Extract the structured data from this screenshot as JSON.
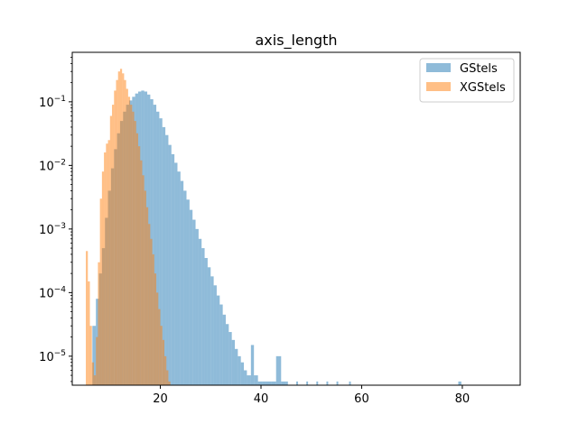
{
  "chart_data": {
    "type": "bar",
    "title": "axis_length",
    "xlabel": "",
    "ylabel": "",
    "yscale": "log",
    "xlim": [
      2.5,
      91.5
    ],
    "ylim": [
      3.5e-06,
      0.6
    ],
    "grid": false,
    "legend_position": "top-right",
    "x_ticks": [
      {
        "value": 20,
        "label": "20"
      },
      {
        "value": 40,
        "label": "40"
      },
      {
        "value": 60,
        "label": "60"
      },
      {
        "value": 80,
        "label": "80"
      }
    ],
    "y_ticks": [
      {
        "value": 1e-05,
        "base": "10",
        "exp": "−5"
      },
      {
        "value": 0.0001,
        "base": "10",
        "exp": "−4"
      },
      {
        "value": 0.001,
        "base": "10",
        "exp": "−3"
      },
      {
        "value": 0.01,
        "base": "10",
        "exp": "−2"
      },
      {
        "value": 0.1,
        "base": "10",
        "exp": "−1"
      }
    ],
    "series": [
      {
        "name": "GStels",
        "color": "#1f77b4",
        "alpha": 0.5,
        "points": [
          [
            6.5,
            3e-05
          ],
          [
            7.2,
            8e-05
          ],
          [
            7.8,
            0.0002
          ],
          [
            8.4,
            0.0005
          ],
          [
            9,
            0.0015
          ],
          [
            9.6,
            0.004
          ],
          [
            10.2,
            0.009
          ],
          [
            10.8,
            0.018
          ],
          [
            11.4,
            0.032
          ],
          [
            12,
            0.05
          ],
          [
            12.6,
            0.07
          ],
          [
            13.2,
            0.09
          ],
          [
            13.8,
            0.105
          ],
          [
            14.4,
            0.12
          ],
          [
            15,
            0.135
          ],
          [
            15.6,
            0.145
          ],
          [
            16.2,
            0.15
          ],
          [
            16.8,
            0.145
          ],
          [
            17.4,
            0.13
          ],
          [
            18,
            0.11
          ],
          [
            18.6,
            0.09
          ],
          [
            19.2,
            0.07
          ],
          [
            19.8,
            0.055
          ],
          [
            20.4,
            0.04
          ],
          [
            21,
            0.03
          ],
          [
            21.6,
            0.021
          ],
          [
            22.2,
            0.015
          ],
          [
            22.8,
            0.011
          ],
          [
            23.4,
            0.008
          ],
          [
            24,
            0.0057
          ],
          [
            24.6,
            0.004
          ],
          [
            25.2,
            0.0029
          ],
          [
            25.8,
            0.002
          ],
          [
            26.4,
            0.0014
          ],
          [
            27,
            0.001
          ],
          [
            27.6,
            0.0007
          ],
          [
            28.2,
            0.0005
          ],
          [
            28.8,
            0.00035
          ],
          [
            29.4,
            0.00025
          ],
          [
            30,
            0.00018
          ],
          [
            30.6,
            0.00013
          ],
          [
            31.2,
            9e-05
          ],
          [
            31.8,
            6.5e-05
          ],
          [
            32.4,
            4.5e-05
          ],
          [
            33,
            3.2e-05
          ],
          [
            33.6,
            2.4e-05
          ],
          [
            34.2,
            1.8e-05
          ],
          [
            34.8,
            1.3e-05
          ],
          [
            35.4,
            1e-05
          ],
          [
            36,
            8e-06
          ],
          [
            36.6,
            6e-06
          ],
          [
            37.2,
            5e-06
          ],
          [
            38,
            1.5e-05
          ],
          [
            38.6,
            5e-06
          ],
          [
            39.4,
            4e-06
          ],
          [
            40.2,
            4e-06
          ],
          [
            41,
            4e-06
          ],
          [
            42,
            4e-06
          ],
          [
            43,
            1e-05
          ],
          [
            44,
            4e-06
          ],
          [
            45,
            4e-06
          ],
          [
            47,
            4e-06
          ],
          [
            49,
            4e-06
          ],
          [
            51,
            4e-06
          ],
          [
            53,
            4e-06
          ],
          [
            55,
            4e-06
          ],
          [
            57.5,
            4e-06
          ],
          [
            79.2,
            4e-06
          ]
        ]
      },
      {
        "name": "XGStels",
        "color": "#ff7f0e",
        "alpha": 0.5,
        "points": [
          [
            5.2,
            0.00045
          ],
          [
            5.6,
            0.00015
          ],
          [
            6,
            3e-05
          ],
          [
            6.4,
            8e-06
          ],
          [
            6.8,
            5e-06
          ],
          [
            7.2,
            2e-05
          ],
          [
            7.6,
            0.0003
          ],
          [
            8,
            0.003
          ],
          [
            8.4,
            0.008
          ],
          [
            8.8,
            0.016
          ],
          [
            9.2,
            0.022
          ],
          [
            9.6,
            0.025
          ],
          [
            10,
            0.06
          ],
          [
            10.4,
            0.09
          ],
          [
            10.8,
            0.15
          ],
          [
            11.2,
            0.22
          ],
          [
            11.6,
            0.3
          ],
          [
            12,
            0.33
          ],
          [
            12.4,
            0.28
          ],
          [
            12.8,
            0.22
          ],
          [
            13.2,
            0.16
          ],
          [
            13.6,
            0.12
          ],
          [
            14,
            0.09
          ],
          [
            14.4,
            0.07
          ],
          [
            14.8,
            0.05
          ],
          [
            15.2,
            0.032
          ],
          [
            15.6,
            0.02
          ],
          [
            16,
            0.012
          ],
          [
            16.4,
            0.007
          ],
          [
            16.8,
            0.004
          ],
          [
            17.2,
            0.0022
          ],
          [
            17.6,
            0.0012
          ],
          [
            18,
            0.0007
          ],
          [
            18.4,
            0.0004
          ],
          [
            18.8,
            0.0002
          ],
          [
            19.2,
            0.0001
          ],
          [
            19.6,
            5.5e-05
          ],
          [
            20,
            3e-05
          ],
          [
            20.4,
            1.8e-05
          ],
          [
            20.8,
            1e-05
          ],
          [
            21.2,
            6e-06
          ],
          [
            21.6,
            4e-06
          ]
        ]
      }
    ]
  }
}
